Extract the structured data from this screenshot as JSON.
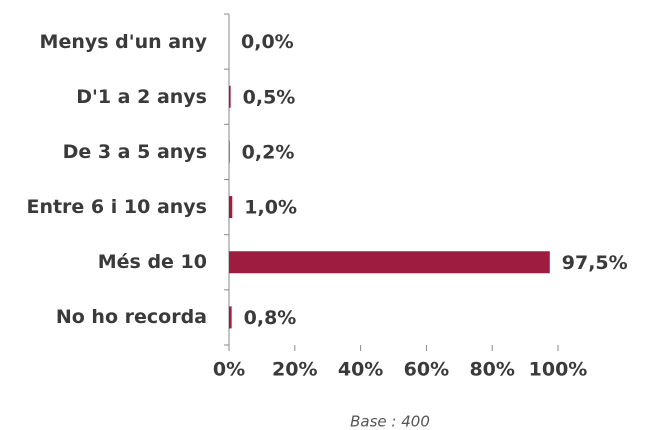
{
  "chart_data": {
    "type": "hbar",
    "categories": [
      "Menys d'un any",
      "D'1 a 2 anys",
      "De 3 a 5 anys",
      "Entre 6 i 10 anys",
      "Més de 10",
      "No ho recorda"
    ],
    "values": [
      0.0,
      0.5,
      0.2,
      1.0,
      97.5,
      0.8
    ],
    "value_labels": [
      "0,0%",
      "0,5%",
      "0,2%",
      "1,0%",
      "97,5%",
      "0,8%"
    ],
    "color": "#9e1c3f",
    "xlim": [
      0,
      100
    ],
    "xticks": [
      {
        "value": 0,
        "label": "0%"
      },
      {
        "value": 20,
        "label": "20%"
      },
      {
        "value": 40,
        "label": "40%"
      },
      {
        "value": 60,
        "label": "60%"
      },
      {
        "value": 80,
        "label": "80%"
      },
      {
        "value": 100,
        "label": "100%"
      }
    ],
    "annotation": "Base : 400"
  }
}
